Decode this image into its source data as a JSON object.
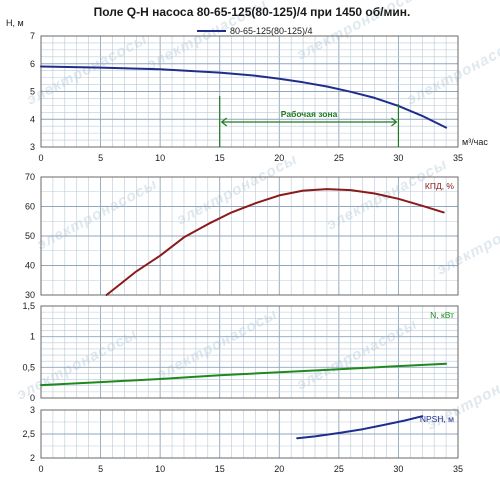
{
  "chart_data": [
    {
      "type": "line",
      "title": "Поле Q-H насоса 80-65-125(80-125)/4 при 1450 об/мин.",
      "ylabel": "H, м",
      "xlabel": "м³/час",
      "xlim": [
        0,
        35
      ],
      "ylim": [
        3,
        7
      ],
      "x_ticks": [
        "0",
        "5",
        "10",
        "15",
        "20",
        "25",
        "30",
        "35"
      ],
      "y_ticks": [
        "3",
        "4",
        "5",
        "6",
        "7"
      ],
      "grid": true,
      "legend_position": "top",
      "series": [
        {
          "name": "80-65-125(80-125)/4",
          "color": "#1f2e8c",
          "x": [
            0,
            5,
            10,
            15,
            18,
            20,
            22,
            24,
            26,
            28,
            30,
            32,
            34
          ],
          "y": [
            5.9,
            5.86,
            5.8,
            5.68,
            5.57,
            5.46,
            5.33,
            5.18,
            4.99,
            4.77,
            4.48,
            4.12,
            3.7
          ]
        }
      ],
      "annotation": {
        "label": "Рабочая зона",
        "range": [
          15,
          30
        ],
        "color": "#1e7a1e"
      }
    },
    {
      "type": "line",
      "ylabel": "КПД, %",
      "xlim": [
        0,
        35
      ],
      "ylim": [
        30,
        75
      ],
      "y_ticks": [
        "30",
        "40",
        "50",
        "60",
        "70"
      ],
      "series": [
        {
          "color": "#8b1a1a",
          "x": [
            5.5,
            8,
            10,
            12,
            14,
            16,
            18,
            20,
            22,
            24,
            26,
            28,
            30,
            32,
            33.8
          ],
          "y": [
            30,
            39,
            45,
            52,
            57,
            61.5,
            65,
            68,
            69.8,
            70.4,
            70,
            68.7,
            66.7,
            64,
            61.5
          ]
        }
      ]
    },
    {
      "type": "line",
      "ylabel": "N, кВт",
      "xlim": [
        0,
        35
      ],
      "ylim": [
        0,
        1.5
      ],
      "y_ticks": [
        "0",
        "0,5",
        "1",
        "1,5"
      ],
      "series": [
        {
          "color": "#1e8a1e",
          "x": [
            0,
            5,
            10,
            15,
            20,
            25,
            30,
            34
          ],
          "y": [
            0.21,
            0.26,
            0.31,
            0.37,
            0.42,
            0.47,
            0.52,
            0.56
          ]
        }
      ]
    },
    {
      "type": "line",
      "ylabel": "NPSH, м",
      "xlabel": "",
      "xlim": [
        0,
        35
      ],
      "ylim": [
        2,
        3
      ],
      "x_ticks": [
        "0",
        "5",
        "10",
        "15",
        "20",
        "25",
        "30",
        "35"
      ],
      "y_ticks": [
        "2",
        "2,5",
        "3"
      ],
      "series": [
        {
          "color": "#1f2e8c",
          "x": [
            21.5,
            23,
            25,
            27,
            29,
            30.5,
            32
          ],
          "y": [
            2.41,
            2.45,
            2.52,
            2.6,
            2.7,
            2.78,
            2.87
          ]
        }
      ]
    }
  ],
  "watermark": "электронасосы",
  "colors": {
    "grid": "#b9c9d8",
    "axis": "#6a6a6a",
    "work_zone": "#1e7a1e"
  }
}
